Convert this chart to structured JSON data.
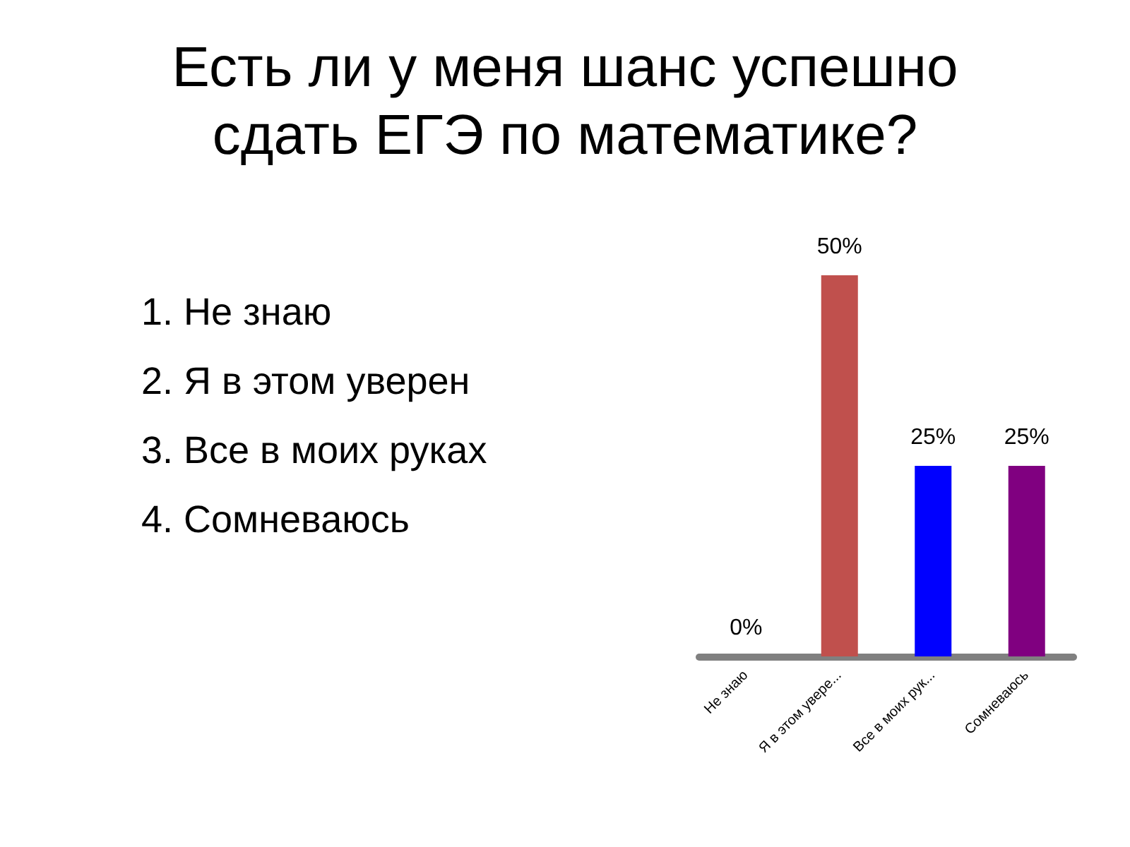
{
  "chart_data": {
    "type": "bar",
    "title": "Есть ли у меня шанс успешно сдать ЕГЭ по математике?",
    "categories": [
      "Не знаю",
      "Я в этом увере...",
      "Все в моих рук...",
      "Сомневаюсь"
    ],
    "values": [
      0,
      50,
      25,
      25
    ],
    "colors": [
      "#4f81bd",
      "#c0504d",
      "#0000ff",
      "#800080"
    ],
    "value_labels": [
      "0%",
      "50%",
      "25%",
      "25%"
    ],
    "annotations": [
      "1. Не знаю",
      "2. Я в этом уверен",
      "3. Все в моих руках",
      "4. Сомневаюсь"
    ]
  }
}
